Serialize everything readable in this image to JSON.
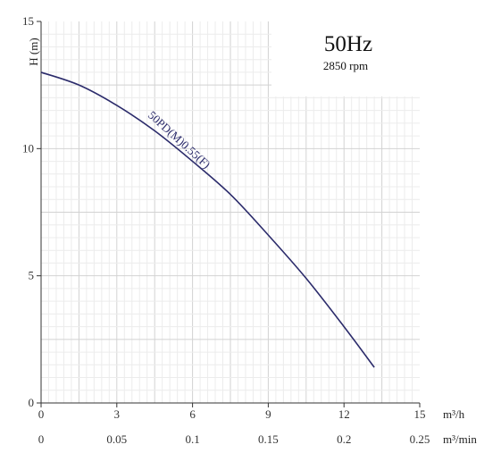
{
  "chart_data": {
    "type": "line",
    "title": "50Hz",
    "subtitle": "2850 rpm",
    "ylabel": "H (m)",
    "xlabel": "m³/h",
    "x2label": "m³/min",
    "xlim": [
      0,
      15
    ],
    "ylim": [
      0,
      15
    ],
    "x_ticks": [
      "0",
      "3",
      "6",
      "9",
      "12",
      "15"
    ],
    "x2_ticks": [
      "0",
      "0.05",
      "0.1",
      "0.15",
      "0.2",
      "0.25"
    ],
    "y_ticks": [
      "0",
      "5",
      "10",
      "15"
    ],
    "grid": true,
    "series": [
      {
        "name": "50PD(M)0.55(F)",
        "color": "#2b2b6b",
        "x": [
          0,
          1.5,
          3,
          4.5,
          6,
          7.5,
          9,
          10.5,
          12,
          13.2
        ],
        "y": [
          13.0,
          12.5,
          11.7,
          10.7,
          9.5,
          8.2,
          6.6,
          4.9,
          3.0,
          1.4
        ]
      }
    ]
  }
}
